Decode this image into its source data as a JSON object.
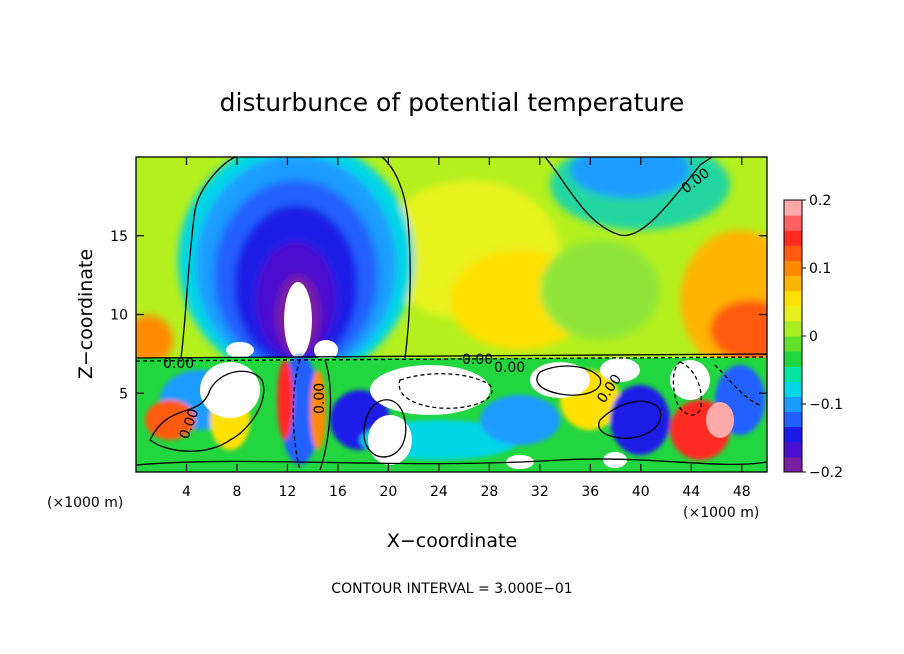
{
  "chart_data": {
    "type": "heatmap",
    "title": "disturbunce of potential temperature",
    "xlabel": "X−coordinate",
    "ylabel": "Z−coordinate",
    "x_unit": "(×1000 m)",
    "x_unit_right": "(×1000 m)",
    "xlim": [
      0,
      50
    ],
    "ylim": [
      0,
      20
    ],
    "x_ticks": [
      4,
      8,
      12,
      16,
      20,
      24,
      28,
      32,
      36,
      40,
      44,
      48
    ],
    "y_ticks": [
      5,
      10,
      15
    ],
    "colorbar": {
      "range": [
        -0.2,
        0.2
      ],
      "tick_values": [
        0.2,
        0.1,
        0,
        -0.1,
        -0.2
      ],
      "tick_labels": [
        "0.2",
        "0.1",
        "0",
        "−0.1",
        "−0.2"
      ],
      "colors": [
        "#7a1fa2",
        "#4b0fd0",
        "#1a1ae6",
        "#2060ff",
        "#1a9cff",
        "#00d6e6",
        "#00e6a0",
        "#22d640",
        "#62e02a",
        "#a8ec22",
        "#e6f01e",
        "#ffe000",
        "#ffb400",
        "#ff8a00",
        "#ff5a10",
        "#ff2a20",
        "#ff6060",
        "#ffaaaa"
      ]
    },
    "contour_labels": [
      "0.00",
      "0.00",
      "0.00",
      "0.00",
      "0.00",
      "0.00",
      "0.00"
    ],
    "footer": "CONTOUR INTERVAL = 3.000E−01",
    "regions": [
      {
        "name": "upper-background",
        "x": [
          0,
          50
        ],
        "z": [
          7.2,
          20
        ],
        "value": 0.02
      },
      {
        "name": "cold-plume",
        "x": [
          4,
          22
        ],
        "z": [
          7.3,
          20
        ],
        "value": -0.14
      },
      {
        "name": "cold-plume-core",
        "x": [
          8,
          18
        ],
        "z": [
          8,
          19
        ],
        "value": -0.2
      },
      {
        "name": "upper-right-cool",
        "x": [
          33,
          46
        ],
        "z": [
          15,
          20
        ],
        "value": -0.08
      },
      {
        "name": "right-warm-edge",
        "x": [
          43,
          50
        ],
        "z": [
          7.3,
          16
        ],
        "value": 0.14
      },
      {
        "name": "left-warm-edge",
        "x": [
          0,
          3
        ],
        "z": [
          7.3,
          10
        ],
        "value": 0.14
      },
      {
        "name": "lower-turbulent-layer",
        "x": [
          0,
          50
        ],
        "z": [
          0,
          7.2
        ],
        "value": 0.0
      }
    ]
  }
}
